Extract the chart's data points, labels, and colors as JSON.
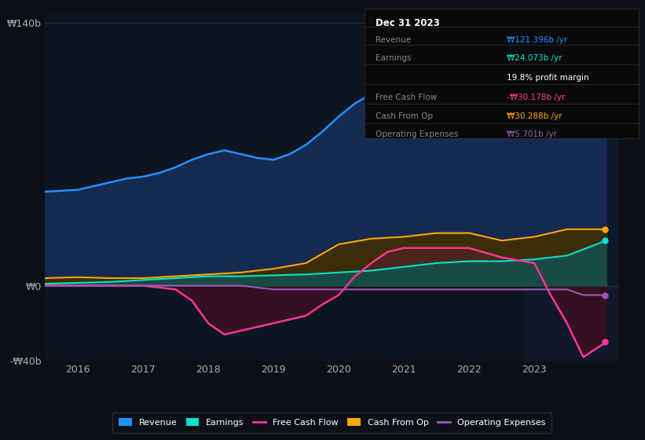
{
  "background_color": "#0d1117",
  "plot_bg_color": "#0d1520",
  "grid_color": "#1e3050",
  "ylim": [
    -40,
    145
  ],
  "yticks": [
    -40,
    0,
    140
  ],
  "ytick_labels": [
    "-₩40b",
    "₩0",
    "₩140b"
  ],
  "xlim": [
    2015.5,
    2024.3
  ],
  "xticks": [
    2016,
    2017,
    2018,
    2019,
    2020,
    2021,
    2022,
    2023
  ],
  "revenue": {
    "x": [
      2015.5,
      2016.0,
      2016.25,
      2016.5,
      2016.75,
      2017.0,
      2017.25,
      2017.5,
      2017.75,
      2018.0,
      2018.25,
      2018.5,
      2018.75,
      2019.0,
      2019.25,
      2019.5,
      2019.75,
      2020.0,
      2020.25,
      2020.5,
      2020.75,
      2021.0,
      2021.25,
      2021.5,
      2021.75,
      2022.0,
      2022.25,
      2022.5,
      2022.75,
      2023.0,
      2023.25,
      2023.5,
      2023.75,
      2024.1
    ],
    "y": [
      50,
      51,
      53,
      55,
      57,
      58,
      60,
      63,
      67,
      70,
      72,
      70,
      68,
      67,
      70,
      75,
      82,
      90,
      97,
      102,
      104,
      105,
      108,
      110,
      110,
      112,
      113,
      108,
      110,
      115,
      118,
      125,
      130,
      121
    ]
  },
  "earnings": {
    "x": [
      2015.5,
      2016.0,
      2016.5,
      2017.0,
      2017.5,
      2018.0,
      2018.5,
      2019.0,
      2019.5,
      2020.0,
      2020.5,
      2021.0,
      2021.5,
      2022.0,
      2022.5,
      2023.0,
      2023.5,
      2024.1
    ],
    "y": [
      1,
      1.5,
      2,
      3,
      4,
      5,
      5,
      5.5,
      6,
      7,
      8,
      10,
      12,
      13,
      13,
      14,
      16,
      24
    ]
  },
  "cash_from_op": {
    "x": [
      2015.5,
      2016.0,
      2016.5,
      2017.0,
      2017.5,
      2018.0,
      2018.5,
      2019.0,
      2019.5,
      2020.0,
      2020.5,
      2021.0,
      2021.5,
      2022.0,
      2022.5,
      2023.0,
      2023.5,
      2024.1
    ],
    "y": [
      4,
      4.5,
      4,
      4,
      5,
      6,
      7,
      9,
      12,
      22,
      25,
      26,
      28,
      28,
      24,
      26,
      30,
      30
    ]
  },
  "free_cash_flow": {
    "x": [
      2015.5,
      2016.0,
      2016.5,
      2017.0,
      2017.5,
      2017.75,
      2018.0,
      2018.25,
      2018.5,
      2018.75,
      2019.0,
      2019.25,
      2019.5,
      2019.75,
      2020.0,
      2020.25,
      2020.5,
      2020.75,
      2021.0,
      2021.5,
      2022.0,
      2022.5,
      2023.0,
      2023.25,
      2023.5,
      2023.75,
      2024.1
    ],
    "y": [
      0,
      0,
      0,
      0,
      -2,
      -8,
      -20,
      -26,
      -24,
      -22,
      -20,
      -18,
      -16,
      -10,
      -5,
      5,
      12,
      18,
      20,
      20,
      20,
      15,
      12,
      -5,
      -20,
      -38,
      -30
    ]
  },
  "operating_expenses": {
    "x": [
      2015.5,
      2016.0,
      2017.0,
      2018.0,
      2018.5,
      2019.0,
      2019.5,
      2020.0,
      2020.5,
      2021.0,
      2021.5,
      2022.0,
      2022.5,
      2023.0,
      2023.5,
      2023.75,
      2024.1
    ],
    "y": [
      0,
      0,
      0,
      0,
      0,
      -2,
      -2,
      -2,
      -2,
      -2,
      -2,
      -2,
      -2,
      -2,
      -2,
      -5,
      -5
    ]
  },
  "colors": {
    "revenue_fill": "#152a50",
    "revenue_line": "#1e90ff",
    "earnings_fill": "#1a4a45",
    "earnings_line": "#00e5cc",
    "cash_from_op_fill": "#3a2e08",
    "cash_from_op_line": "#ffa500",
    "free_cash_flow_line": "#ff3399",
    "free_cash_flow_fill_neg": "#3a1020",
    "free_cash_flow_fill_pos": "#5a2030",
    "operating_expenses_line": "#9b59b6",
    "highlight_bg": "#1a2535"
  },
  "info_box": {
    "title": "Dec 31 2023",
    "rows": [
      {
        "label": "Revenue",
        "value": "₩121.396b /yr",
        "label_color": "#888888",
        "value_color": "#1e90ff"
      },
      {
        "label": "Earnings",
        "value": "₩24.073b /yr",
        "label_color": "#888888",
        "value_color": "#00e5cc"
      },
      {
        "label": "",
        "value": "19.8% profit margin",
        "label_color": "#888888",
        "value_color": "#ffffff"
      },
      {
        "label": "Free Cash Flow",
        "value": "-₩30.178b /yr",
        "label_color": "#888888",
        "value_color": "#ff3399"
      },
      {
        "label": "Cash From Op",
        "value": "₩30.288b /yr",
        "label_color": "#888888",
        "value_color": "#ffa500"
      },
      {
        "label": "Operating Expenses",
        "value": "₩5.701b /yr",
        "label_color": "#888888",
        "value_color": "#9b59b6"
      }
    ]
  },
  "legend": [
    {
      "label": "Revenue",
      "color": "#1e90ff",
      "type": "patch"
    },
    {
      "label": "Earnings",
      "color": "#00e5cc",
      "type": "patch"
    },
    {
      "label": "Free Cash Flow",
      "color": "#ff3399",
      "type": "line"
    },
    {
      "label": "Cash From Op",
      "color": "#ffa500",
      "type": "patch"
    },
    {
      "label": "Operating Expenses",
      "color": "#9b59b6",
      "type": "line"
    }
  ]
}
